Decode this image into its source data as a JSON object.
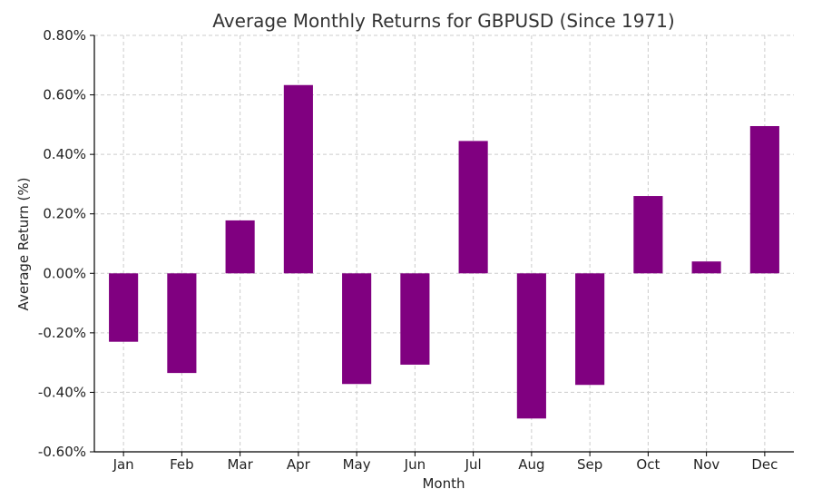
{
  "chart_data": {
    "type": "bar",
    "title": "Average Monthly Returns for GBPUSD (Since 1971)",
    "xlabel": "Month",
    "ylabel": "Average Return (%)",
    "categories": [
      "Jan",
      "Feb",
      "Mar",
      "Apr",
      "May",
      "Jun",
      "Jul",
      "Aug",
      "Sep",
      "Oct",
      "Nov",
      "Dec"
    ],
    "values": [
      -0.23,
      -0.335,
      0.178,
      0.633,
      -0.372,
      -0.307,
      0.445,
      -0.488,
      -0.375,
      0.26,
      0.04,
      0.495
    ],
    "ylim": [
      -0.6,
      0.8
    ],
    "yticks": [
      -0.6,
      -0.4,
      -0.2,
      0.0,
      0.2,
      0.4,
      0.6,
      0.8
    ],
    "ytick_labels": [
      "-0.60%",
      "-0.40%",
      "-0.20%",
      "0.00%",
      "0.20%",
      "0.40%",
      "0.60%",
      "0.80%"
    ],
    "bar_color": "#800080",
    "grid": true,
    "legend": "none"
  }
}
